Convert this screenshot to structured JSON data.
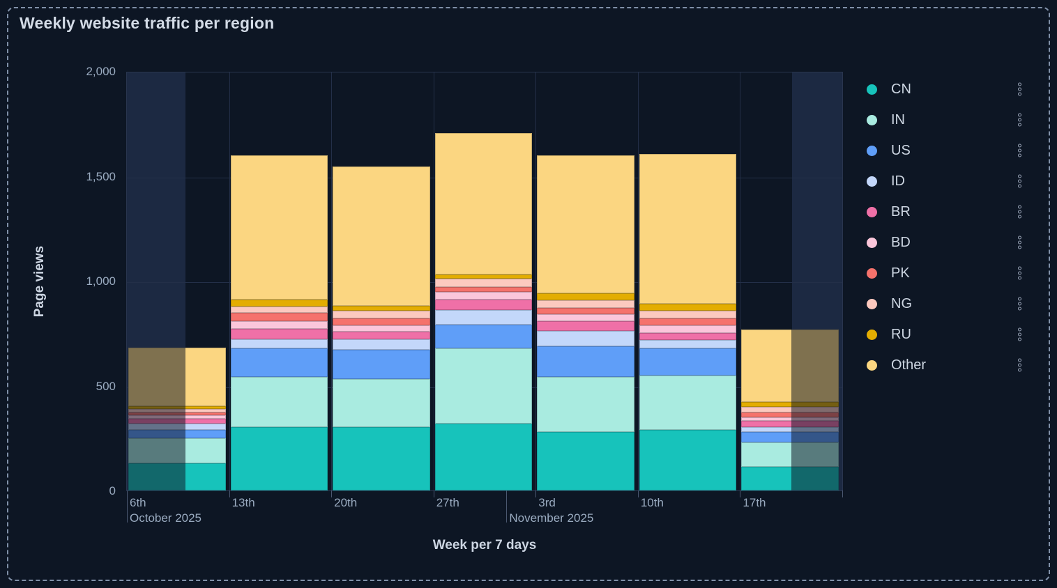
{
  "title": "Weekly website traffic per region",
  "colors": {
    "page_background": "#0d1624",
    "range_band": "#1c2942",
    "gridline": "#232f48",
    "axis_text": "#9aabc0",
    "label_text": "#ccd5e2"
  },
  "y_axis": {
    "label": "Page views",
    "ticks": [
      {
        "label": "2,000",
        "value": 2000
      },
      {
        "label": "1,500",
        "value": 1500
      },
      {
        "label": "1,000",
        "value": 1000
      },
      {
        "label": "500",
        "value": 500
      },
      {
        "label": "0",
        "value": 0
      }
    ]
  },
  "x_axis": {
    "label": "Week per 7 days",
    "ticks": [
      {
        "label": "6th",
        "pos": 0
      },
      {
        "label": "13th",
        "pos": 14.2857
      },
      {
        "label": "20th",
        "pos": 28.5714
      },
      {
        "label": "27th",
        "pos": 42.8571
      },
      {
        "label": "3rd",
        "pos": 57.1429
      },
      {
        "label": "10th",
        "pos": 71.4286
      },
      {
        "label": "17th",
        "pos": 85.7143
      }
    ],
    "edge_tick_positions": [
      14.2857,
      28.5714,
      42.8571,
      57.1429,
      71.4286,
      85.7143,
      100
    ],
    "month_ticks": [
      {
        "label": "October 2025",
        "pos": 0
      },
      {
        "label": "November 2025",
        "pos": 53.06
      }
    ]
  },
  "chart_data": {
    "type": "bar",
    "stacked": true,
    "title": "Weekly website traffic per region",
    "xlabel": "Week per 7 days",
    "ylabel": "Page views",
    "ylim": [
      0,
      2000
    ],
    "grid": true,
    "legend_position": "right",
    "categories": [
      "Oct 6",
      "Oct 13",
      "Oct 20",
      "Oct 27",
      "Nov 3",
      "Nov 10",
      "Nov 17"
    ],
    "series": [
      {
        "name": "CN",
        "color": "#17c3bb",
        "values": [
          130,
          305,
          305,
          320,
          280,
          290,
          115
        ]
      },
      {
        "name": "IN",
        "color": "#a9ebe0",
        "values": [
          120,
          240,
          230,
          360,
          265,
          260,
          115
        ]
      },
      {
        "name": "US",
        "color": "#5f9ef8",
        "values": [
          40,
          135,
          140,
          115,
          145,
          130,
          50
        ]
      },
      {
        "name": "ID",
        "color": "#c3d7fa",
        "values": [
          30,
          45,
          50,
          70,
          75,
          40,
          25
        ]
      },
      {
        "name": "BR",
        "color": "#ef70a7",
        "values": [
          25,
          50,
          35,
          50,
          45,
          35,
          30
        ]
      },
      {
        "name": "BD",
        "color": "#fbc6da",
        "values": [
          15,
          35,
          30,
          35,
          35,
          35,
          15
        ]
      },
      {
        "name": "PK",
        "color": "#f5726c",
        "values": [
          15,
          40,
          35,
          25,
          30,
          35,
          25
        ]
      },
      {
        "name": "NG",
        "color": "#fcc9bf",
        "values": [
          15,
          30,
          35,
          40,
          35,
          35,
          25
        ]
      },
      {
        "name": "RU",
        "color": "#e3ad01",
        "values": [
          15,
          35,
          25,
          20,
          35,
          35,
          25
        ]
      },
      {
        "name": "Other",
        "color": "#fbd681",
        "values": [
          280,
          690,
          665,
          675,
          660,
          715,
          345
        ]
      }
    ],
    "totals": [
      685,
      1605,
      1550,
      1710,
      1605,
      1610,
      770
    ],
    "range_highlights_pct": [
      {
        "start": 0,
        "end": 8.17
      },
      {
        "start": 92.99,
        "end": 100
      }
    ],
    "partial_bar_dim": [
      {
        "bar": 0,
        "from": 0,
        "to": 0.585
      },
      {
        "bar": 6,
        "from": 0.514,
        "to": 1
      }
    ]
  }
}
